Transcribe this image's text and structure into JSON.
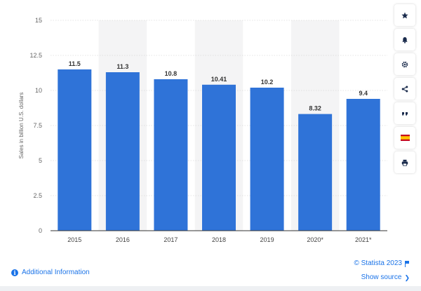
{
  "chart_data": {
    "type": "bar",
    "categories": [
      "2015",
      "2016",
      "2017",
      "2018",
      "2019",
      "2020*",
      "2021*"
    ],
    "values": [
      11.5,
      11.3,
      10.8,
      10.41,
      10.2,
      8.32,
      9.4
    ],
    "value_labels": [
      "11.5",
      "11.3",
      "10.8",
      "10.41",
      "10.2",
      "8.32",
      "9.4"
    ],
    "ylabel": "Sales in billion U.S. dollars",
    "ylim": [
      0,
      15
    ],
    "yticks": [
      0,
      2.5,
      5,
      7.5,
      10,
      12.5,
      15
    ],
    "ytick_labels": [
      "0",
      "2.5",
      "5",
      "7.5",
      "10",
      "12.5",
      "15"
    ],
    "grid": true,
    "bar_color": "#2f73d8",
    "band_color": "#f4f4f5"
  },
  "footer": {
    "info_label": "Additional Information",
    "copyright": "© Statista 2023",
    "show_source": "Show source"
  },
  "sidebar": {
    "buttons": [
      {
        "name": "star-button",
        "icon": "star-icon"
      },
      {
        "name": "bell-button",
        "icon": "bell-icon"
      },
      {
        "name": "settings-button",
        "icon": "gear-icon"
      },
      {
        "name": "share-button",
        "icon": "share-icon"
      },
      {
        "name": "quote-button",
        "icon": "quote-icon"
      },
      {
        "name": "language-button",
        "icon": "spain-flag-icon"
      },
      {
        "name": "print-button",
        "icon": "print-icon"
      }
    ],
    "accent": "#1a2b4c"
  }
}
